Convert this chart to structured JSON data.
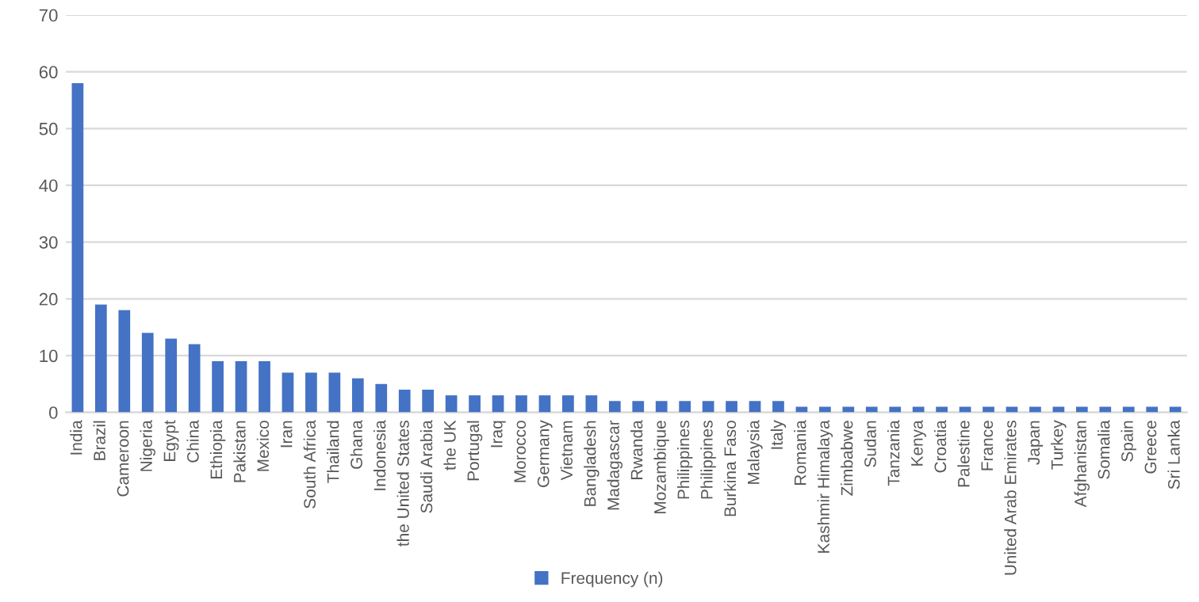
{
  "chart_data": {
    "type": "bar",
    "categories": [
      "India",
      "Brazil",
      "Cameroon",
      "Nigeria",
      "Egypt",
      "China",
      "Ethiopia",
      "Pakistan",
      "Mexico",
      "Iran",
      "South Africa",
      "Thailand",
      "Ghana",
      "Indonesia",
      "the United States",
      "Saudi Arabia",
      "the UK",
      "Portugal",
      "Iraq",
      "Morocco",
      "Germany",
      "Vietnam",
      "Bangladesh",
      "Madagascar",
      "Rwanda",
      "Mozambique",
      "Philippines",
      "Philippines",
      "Burkina Faso",
      "Malaysia",
      "Italy",
      "Romania",
      "Kashmir Himalaya",
      "Zimbabwe",
      "Sudan",
      "Tanzania",
      "Kenya",
      "Croatia",
      "Palestine",
      "France",
      "United Arab Emirates",
      "Japan",
      "Turkey",
      "Afghanistan",
      "Somalia",
      "Spain",
      "Greece",
      "Sri Lanka"
    ],
    "series": [
      {
        "name": "Frequency (n)",
        "color": "#4472c4",
        "values": [
          58,
          19,
          18,
          14,
          13,
          12,
          9,
          9,
          9,
          7,
          7,
          7,
          6,
          5,
          4,
          4,
          3,
          3,
          3,
          3,
          3,
          3,
          3,
          2,
          2,
          2,
          2,
          2,
          2,
          2,
          2,
          1,
          1,
          1,
          1,
          1,
          1,
          1,
          1,
          1,
          1,
          1,
          1,
          1,
          1,
          1,
          1,
          1
        ]
      }
    ],
    "ylim": [
      0,
      70
    ],
    "yticks": [
      0,
      10,
      20,
      30,
      40,
      50,
      60,
      70
    ],
    "grid": "y",
    "legend": "bottom"
  }
}
